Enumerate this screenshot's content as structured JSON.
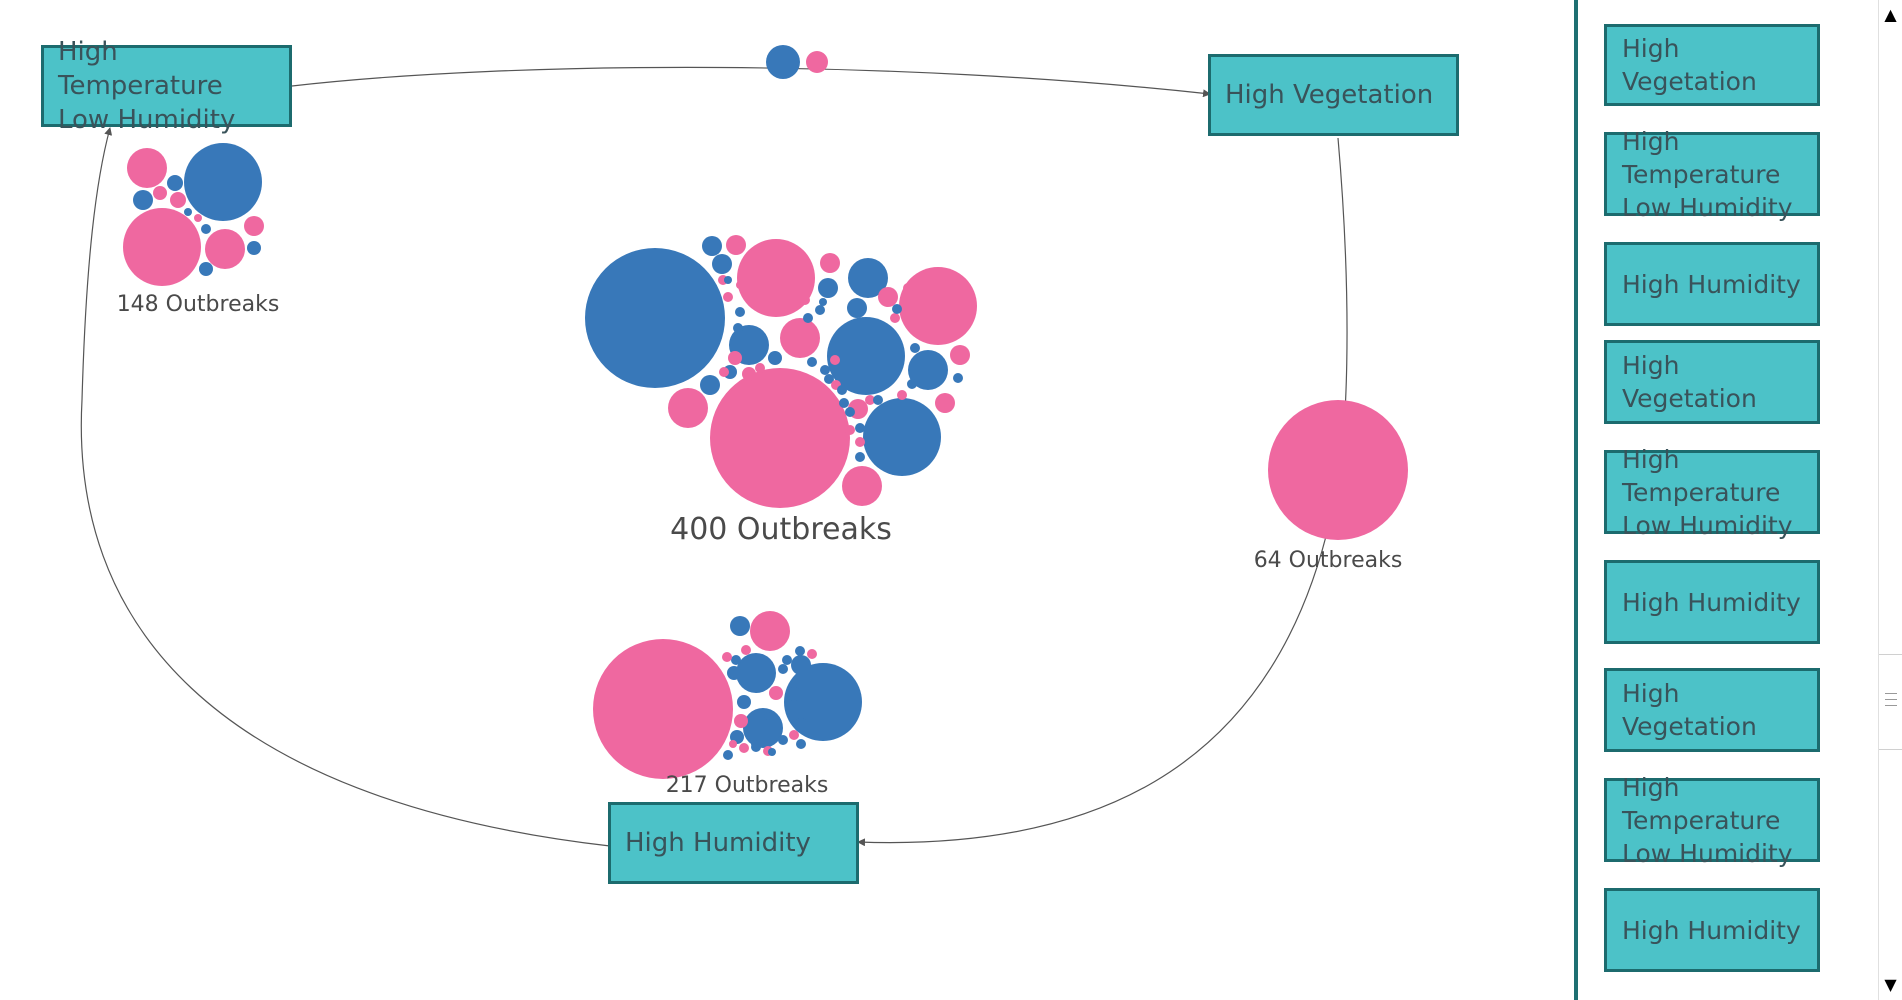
{
  "colors": {
    "box_fill": "#4cc2c8",
    "box_border": "#1c6b6e",
    "box_text": "#39535a",
    "blue_bubble": "#3878b9",
    "pink_bubble": "#ef68a0",
    "edge": "#555555"
  },
  "states": [
    {
      "id": "hthl",
      "label": "High Temperature\nLow Humidity"
    },
    {
      "id": "hv",
      "label": "High Vegetation"
    },
    {
      "id": "hh",
      "label": "High Humidity"
    }
  ],
  "clusters": [
    {
      "id": "center",
      "label": "400 Outbreaks",
      "outbreaks": 400
    },
    {
      "id": "hthl",
      "label": "148 Outbreaks",
      "outbreaks": 148
    },
    {
      "id": "hv",
      "label": "64 Outbreaks",
      "outbreaks": 64
    },
    {
      "id": "hh",
      "label": "217 Outbreaks",
      "outbreaks": 217
    }
  ],
  "edges": [
    {
      "from": "hthl",
      "to": "hv"
    },
    {
      "from": "hv",
      "to": "hh"
    },
    {
      "from": "hh",
      "to": "hthl"
    }
  ],
  "sequence": [
    "High Vegetation",
    "High Temperature\nLow Humidity",
    "High Humidity",
    "High Vegetation",
    "High Temperature\nLow Humidity",
    "High Humidity",
    "High Vegetation",
    "High Temperature\nLow Humidity",
    "High Humidity"
  ],
  "scrollbar": {
    "up_icon": "▲",
    "down_icon": "▼"
  }
}
